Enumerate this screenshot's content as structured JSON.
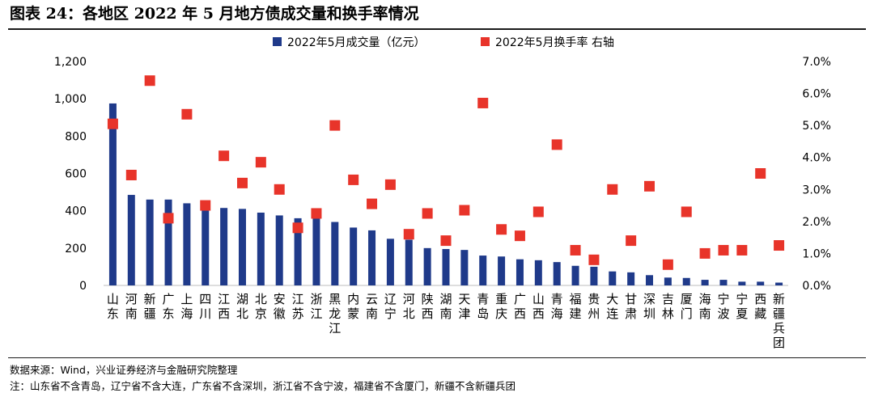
{
  "figure": {
    "title": "图表 24：各地区 2022 年 5 月地方债成交量和换手率情况",
    "source": "数据来源：Wind，兴业证券经济与金融研究院整理",
    "note": "注：山东省不含青岛，辽宁省不含大连，广东省不含深圳，浙江省不含宁波，福建省不含厦门，新疆不含新疆兵团"
  },
  "chart_data": {
    "type": "bar",
    "categories": [
      "山东",
      "河南",
      "新疆",
      "广东",
      "上海",
      "四川",
      "江西",
      "湖北",
      "北京",
      "安徽",
      "江苏",
      "浙江",
      "黑龙江",
      "内蒙",
      "云南",
      "辽宁",
      "河北",
      "陕西",
      "湖南",
      "天津",
      "青岛",
      "重庆",
      "广西",
      "山西",
      "青海",
      "福建",
      "贵州",
      "大连",
      "甘肃",
      "深圳",
      "吉林",
      "厦门",
      "海南",
      "宁波",
      "宁夏",
      "西藏",
      "新疆兵团"
    ],
    "series": [
      {
        "name": "2022年5月成交量（亿元）",
        "type": "bar",
        "axis": "left",
        "color": "#1f3a8a",
        "values": [
          975,
          485,
          460,
          460,
          440,
          420,
          415,
          410,
          390,
          375,
          360,
          360,
          340,
          310,
          295,
          250,
          245,
          200,
          195,
          190,
          160,
          155,
          140,
          135,
          125,
          105,
          100,
          75,
          70,
          55,
          42,
          40,
          30,
          30,
          20,
          20,
          15
        ]
      },
      {
        "name": "2022年5月换手率 右轴",
        "type": "scatter",
        "axis": "right",
        "color": "#e8342a",
        "values": [
          5.05,
          3.45,
          6.4,
          2.1,
          5.35,
          2.5,
          4.05,
          3.2,
          3.85,
          3.0,
          1.8,
          2.25,
          5.0,
          3.3,
          2.55,
          3.15,
          1.6,
          2.25,
          1.4,
          2.35,
          5.7,
          1.75,
          1.55,
          2.3,
          4.4,
          1.1,
          0.8,
          3.0,
          1.4,
          3.1,
          0.65,
          2.3,
          1.0,
          1.1,
          1.1,
          3.5,
          1.25
        ]
      }
    ],
    "y_left": {
      "min": 0,
      "max": 1200,
      "ticks": [
        "0",
        "200",
        "400",
        "600",
        "800",
        "1,000",
        "1,200"
      ]
    },
    "y_right": {
      "min": 0,
      "max": 7,
      "ticks": [
        "0.0%",
        "1.0%",
        "2.0%",
        "3.0%",
        "4.0%",
        "5.0%",
        "6.0%",
        "7.0%"
      ]
    },
    "grid": false,
    "legend": "top"
  }
}
